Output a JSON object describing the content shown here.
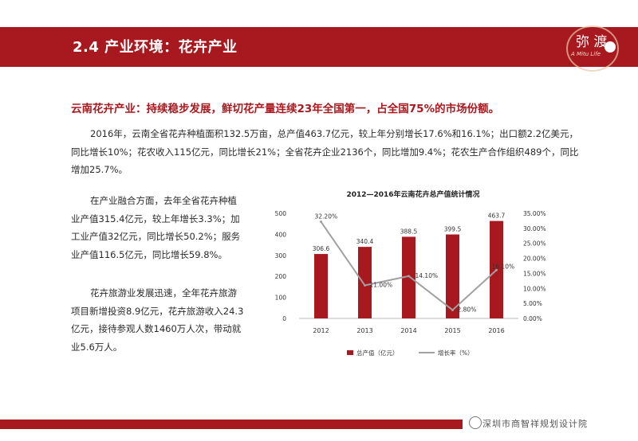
{
  "header": {
    "title": "2.4  产业环境：花卉产业"
  },
  "logo": {
    "text": "弥 渡",
    "sub": "A Mitu Life"
  },
  "headline": "云南花卉产业：持续稳步发展，鲜切花产量连续23年全国第一，占全国75%的市场份额。",
  "paragraphs": {
    "p1": "2016年，云南全省花卉种植面积132.5万亩，总产值463.7亿元，较上年分别增长17.6%和16.1%；出口额2.2亿美元，同比增长10%；花农收入115亿元，同比增长21%；全省花卉企业2136个，同比增加9.4%；花农生产合作组织489个，同比增加25.7%。",
    "p2": "在产业融合方面，去年全省花卉种植业产值315.4亿元，较上年增长3.3%；加工业产值32亿元，同比增长50.2%；服务业产值116.5亿元，同比增长59.8%。",
    "p3": "花卉旅游业发展迅速，全年花卉旅游项目新增投资8.9亿元，花卉旅游收入24.3亿元，接待参观人数1460万人次，带动就业5.6万人。"
  },
  "chart_data": {
    "type": "bar",
    "title": "2012—2016年云南花卉总产值统计情况",
    "categories": [
      "2012",
      "2013",
      "2014",
      "2015",
      "2016"
    ],
    "series": [
      {
        "name": "总产值（亿元）",
        "type": "bar",
        "values": [
          306.6,
          340.4,
          388.5,
          399.5,
          463.7
        ],
        "labels": [
          "306.6",
          "340.4",
          "388.5",
          "399.5",
          "463.7"
        ],
        "color": "#a8191f"
      },
      {
        "name": "增长率（%）",
        "type": "line",
        "axis": "right",
        "values": [
          32.2,
          11.0,
          14.1,
          2.8,
          16.1
        ],
        "labels": [
          "32.20%",
          "11.00%",
          "14.10%",
          "2.80%",
          "16.10%"
        ],
        "color": "#a0a0a0"
      }
    ],
    "ylim": [
      0,
      500
    ],
    "yticks": [
      "0",
      "100",
      "200",
      "300",
      "400",
      "500"
    ],
    "y2lim": [
      0,
      35
    ],
    "y2ticks": [
      "0.00%",
      "5.00%",
      "10.00%",
      "15.00%",
      "20.00%",
      "25.00%",
      "30.00%",
      "35.00%"
    ],
    "legend": "bottom"
  },
  "footer": {
    "text": "深圳市商智祥规划设计院"
  }
}
